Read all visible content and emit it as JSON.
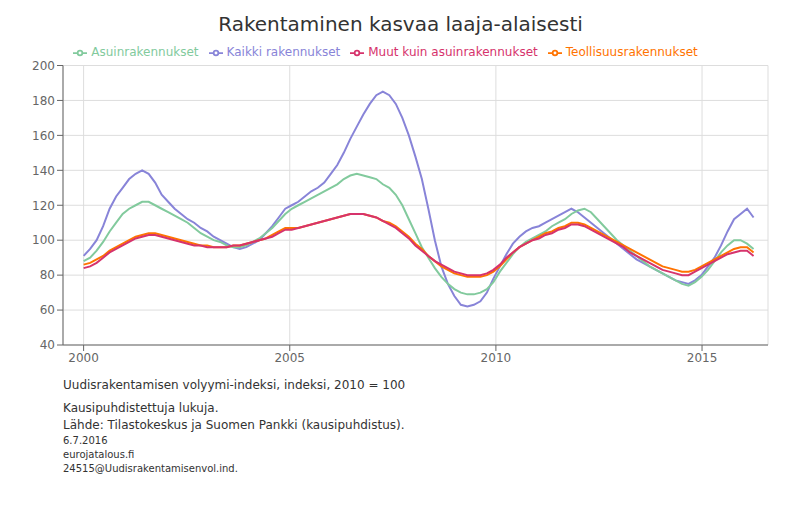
{
  "chart_data": {
    "type": "line",
    "title": "Rakentaminen kasvaa laaja-alaisesti",
    "ylabel": "Uudisrakentamisen volyymi-indeksi,  indeksi, 2010 = 100",
    "annotations": [
      "Kausipuhdistettuja lukuja.",
      "Lähde: Tilastokeskus ja Suomen Pankki (kausipuhdistus).",
      "6.7.2016",
      "eurojatalous.fi",
      "24515@Uudisrakentamisenvol.ind."
    ],
    "xlim": [
      1999.5,
      2016.6
    ],
    "xticks": [
      2000,
      2005,
      2010,
      2015
    ],
    "ylim": [
      40,
      200
    ],
    "yticks": [
      40,
      60,
      80,
      100,
      120,
      140,
      160,
      180,
      200
    ],
    "grid": true,
    "legend": "top",
    "x": [
      2000,
      2000.1578,
      2000.3155,
      2000.4733,
      2000.6311,
      2000.7888,
      2000.9466,
      2001.1044,
      2001.2621,
      2001.4199,
      2001.5777,
      2001.7354,
      2001.8932,
      2002.051,
      2002.2087,
      2002.3665,
      2002.5243,
      2002.682,
      2002.8398,
      2002.9976,
      2003.1553,
      2003.3131,
      2003.4709,
      2003.6286,
      2003.7864,
      2003.9442,
      2004.1019,
      2004.2597,
      2004.4175,
      2004.5752,
      2004.733,
      2004.8908,
      2005.0485,
      2005.2063,
      2005.3641,
      2005.5218,
      2005.6796,
      2005.8374,
      2005.9951,
      2006.1529,
      2006.3107,
      2006.4684,
      2006.6262,
      2006.784,
      2006.9417,
      2007.0995,
      2007.2573,
      2007.415,
      2007.5728,
      2007.7306,
      2007.8883,
      2008.0461,
      2008.2039,
      2008.3617,
      2008.5194,
      2008.6772,
      2008.835,
      2008.9927,
      2009.1505,
      2009.3083,
      2009.466,
      2009.6238,
      2009.7816,
      2009.9393,
      2010.0971,
      2010.2549,
      2010.4126,
      2010.5704,
      2010.7282,
      2010.8859,
      2011.0437,
      2011.2015,
      2011.3592,
      2011.517,
      2011.6748,
      2011.8325,
      2011.9903,
      2012.1481,
      2012.3058,
      2012.4636,
      2012.6214,
      2012.7791,
      2012.9369,
      2013.0947,
      2013.2524,
      2013.4102,
      2013.568,
      2013.7257,
      2013.8835,
      2014.0413,
      2014.199,
      2014.3568,
      2014.5146,
      2014.6723,
      2014.8301,
      2014.9879,
      2015.1456,
      2015.3034,
      2015.4612,
      2015.6189,
      2015.7767,
      2015.9345,
      2016.0922,
      2016.25
    ],
    "series": [
      {
        "name": "Kaikki rakennukset",
        "color": "#8884d8",
        "values": [
          91,
          95,
          100,
          108,
          118,
          125,
          130,
          135,
          138,
          140,
          138,
          133,
          126,
          122,
          118,
          115,
          112,
          110,
          107,
          105,
          102,
          100,
          98,
          96,
          95,
          96,
          98,
          100,
          104,
          108,
          113,
          118,
          120,
          122,
          125,
          128,
          130,
          133,
          138,
          143,
          150,
          158,
          165,
          172,
          178,
          183,
          185,
          183,
          178,
          170,
          160,
          148,
          135,
          118,
          100,
          85,
          75,
          68,
          63,
          62,
          63,
          65,
          70,
          78,
          85,
          92,
          98,
          102,
          105,
          107,
          108,
          110,
          112,
          114,
          116,
          118,
          116,
          113,
          110,
          107,
          104,
          101,
          98,
          95,
          92,
          89,
          87,
          85,
          83,
          81,
          79,
          77,
          76,
          75,
          77,
          80,
          85,
          90,
          97,
          105,
          112,
          115,
          118,
          113
        ]
      },
      {
        "name": "Asuinrakennukset",
        "color": "#82ca9d",
        "values": [
          88,
          90,
          94,
          99,
          105,
          110,
          115,
          118,
          120,
          122,
          122,
          120,
          118,
          116,
          114,
          112,
          110,
          107,
          104,
          102,
          100,
          99,
          97,
          96,
          96,
          97,
          99,
          101,
          104,
          107,
          111,
          115,
          118,
          120,
          122,
          124,
          126,
          128,
          130,
          132,
          135,
          137,
          138,
          137,
          136,
          135,
          132,
          130,
          126,
          120,
          112,
          104,
          96,
          90,
          84,
          79,
          75,
          72,
          70,
          69,
          69,
          70,
          72,
          76,
          82,
          87,
          92,
          96,
          99,
          101,
          103,
          105,
          108,
          110,
          112,
          115,
          117,
          118,
          116,
          112,
          108,
          104,
          100,
          97,
          94,
          91,
          88,
          85,
          83,
          81,
          79,
          77,
          75,
          74,
          76,
          79,
          83,
          88,
          93,
          97,
          100,
          100,
          98,
          95
        ]
      },
      {
        "name": "Teollisuusrakennukset",
        "color": "#ff7300",
        "values": [
          86,
          87,
          89,
          91,
          94,
          96,
          98,
          100,
          102,
          103,
          104,
          104,
          103,
          102,
          101,
          100,
          99,
          98,
          97,
          97,
          96,
          96,
          96,
          97,
          97,
          98,
          99,
          100,
          101,
          103,
          105,
          107,
          107,
          107,
          108,
          109,
          110,
          111,
          112,
          113,
          114,
          115,
          115,
          115,
          114,
          113,
          111,
          110,
          108,
          105,
          102,
          98,
          95,
          91,
          88,
          85,
          83,
          81,
          80,
          79,
          79,
          79,
          80,
          82,
          85,
          89,
          93,
          96,
          98,
          100,
          102,
          104,
          105,
          107,
          108,
          110,
          110,
          109,
          107,
          105,
          103,
          101,
          99,
          97,
          95,
          93,
          91,
          89,
          87,
          85,
          84,
          83,
          82,
          82,
          83,
          85,
          87,
          89,
          91,
          93,
          95,
          96,
          96,
          93
        ]
      },
      {
        "name": "Muut kuin asuinrakennukset",
        "color": "#d6336c",
        "values": [
          84,
          85,
          87,
          90,
          93,
          95,
          97,
          99,
          101,
          102,
          103,
          103,
          102,
          101,
          100,
          99,
          98,
          97,
          97,
          96,
          96,
          96,
          96,
          97,
          97,
          98,
          99,
          100,
          101,
          102,
          104,
          106,
          106,
          107,
          108,
          109,
          110,
          111,
          112,
          113,
          114,
          115,
          115,
          115,
          114,
          113,
          111,
          109,
          107,
          104,
          101,
          97,
          94,
          91,
          88,
          86,
          84,
          82,
          81,
          80,
          80,
          80,
          81,
          83,
          86,
          90,
          93,
          96,
          98,
          100,
          101,
          103,
          104,
          106,
          107,
          109,
          109,
          108,
          106,
          104,
          102,
          100,
          98,
          96,
          93,
          91,
          89,
          87,
          85,
          83,
          82,
          81,
          80,
          80,
          82,
          84,
          86,
          88,
          90,
          92,
          93,
          94,
          94,
          91
        ]
      }
    ]
  }
}
